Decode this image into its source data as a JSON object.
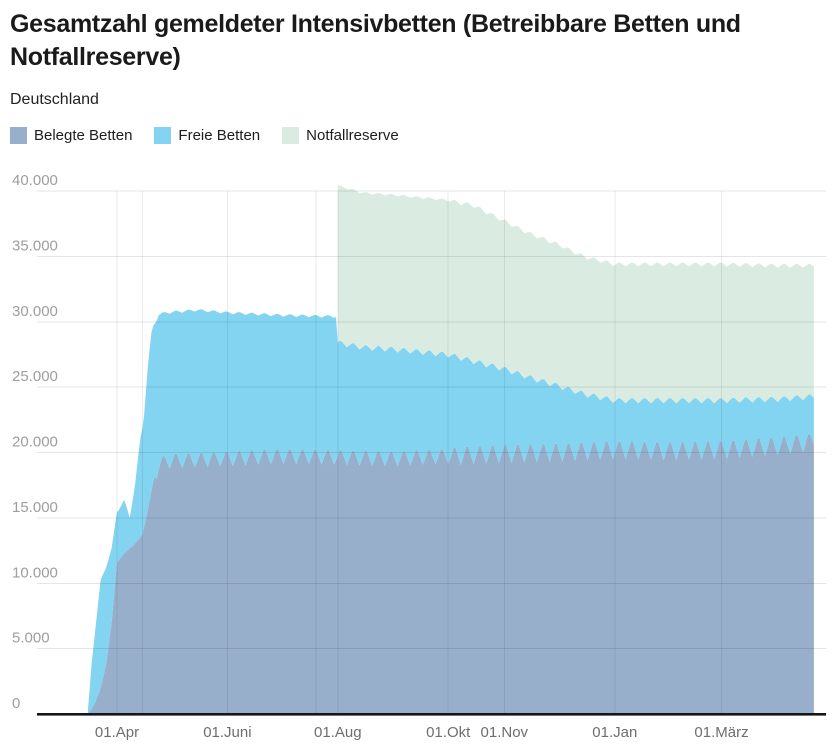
{
  "header": {
    "title": "Gesamtzahl gemeldeter Intensivbetten (Betreibbare Betten und Notfallreserve)",
    "subtitle": "Deutschland"
  },
  "colors": {
    "belegte": "#97afcb",
    "freie": "#82d4f1",
    "notfallreserve": "#daece2",
    "axis_line": "#16161a",
    "gridline": "rgba(0,0,0,0.10)",
    "minor_gridline": "rgba(0,0,0,0.08)",
    "y_tick_text": "#9e9e9e",
    "x_tick_text": "#6e6e6e"
  },
  "chart_data": {
    "type": "area",
    "stacked": true,
    "title": "Gesamtzahl gemeldeter Intensivbetten (Betreibbare Betten und Notfallreserve)",
    "subtitle": "Deutschland",
    "legend_position": "top-left",
    "grid": true,
    "ylim": [
      0,
      40000
    ],
    "y_axis": {
      "ticks": [
        {
          "label": "0",
          "value": 0
        },
        {
          "label": "5.000",
          "value": 5000
        },
        {
          "label": "10.000",
          "value": 10000
        },
        {
          "label": "15.000",
          "value": 15000
        },
        {
          "label": "20.000",
          "value": 20000
        },
        {
          "label": "25.000",
          "value": 25000
        },
        {
          "label": "30.000",
          "value": 30000
        },
        {
          "label": "35.000",
          "value": 35000
        },
        {
          "label": "40.000",
          "value": 40000
        }
      ]
    },
    "x_axis": {
      "range": [
        "2020-03-16",
        "2021-04-21"
      ],
      "tick_labels": [
        {
          "label": "01.Apr",
          "date": "2020-04-01"
        },
        {
          "label": "01.Juni",
          "date": "2020-06-01"
        },
        {
          "label": "01.Aug",
          "date": "2020-08-01"
        },
        {
          "label": "01.Okt",
          "date": "2020-10-01"
        },
        {
          "label": "01.Nov",
          "date": "2020-11-01"
        },
        {
          "label": "01.Jan",
          "date": "2021-01-01"
        },
        {
          "label": "01.März",
          "date": "2021-03-01"
        }
      ],
      "minor_gridline_dates": [
        "2020-04-15",
        "2020-07-20"
      ]
    },
    "series": [
      {
        "name": "Belegte Betten",
        "color": "#97afcb",
        "keypoints": [
          [
            "2020-03-16",
            0
          ],
          [
            "2020-03-18",
            400
          ],
          [
            "2020-03-20",
            900
          ],
          [
            "2020-03-23",
            2000
          ],
          [
            "2020-03-26",
            3800
          ],
          [
            "2020-03-29",
            7000
          ],
          [
            "2020-04-01",
            11600
          ],
          [
            "2020-04-05",
            12300
          ],
          [
            "2020-04-10",
            12900
          ],
          [
            "2020-04-15",
            13700
          ],
          [
            "2020-04-18",
            15600
          ],
          [
            "2020-04-21",
            17800
          ],
          [
            "2020-04-24",
            19000
          ],
          [
            "2020-04-28",
            19400
          ],
          [
            "2020-06-01",
            19600
          ],
          [
            "2020-07-01",
            19800
          ],
          [
            "2020-08-01",
            19700
          ],
          [
            "2020-09-01",
            19600
          ],
          [
            "2020-10-01",
            19800
          ],
          [
            "2020-11-01",
            20000
          ],
          [
            "2020-12-01",
            20100
          ],
          [
            "2021-01-01",
            20300
          ],
          [
            "2021-02-01",
            20200
          ],
          [
            "2021-03-01",
            20300
          ],
          [
            "2021-04-01",
            20600
          ],
          [
            "2021-04-21",
            20900
          ]
        ]
      },
      {
        "name": "Freie Betten",
        "color": "#82d4f1",
        "keypoints": [
          [
            "2020-03-16",
            300
          ],
          [
            "2020-03-18",
            3600
          ],
          [
            "2020-03-20",
            5600
          ],
          [
            "2020-03-23",
            8200
          ],
          [
            "2020-03-26",
            7500
          ],
          [
            "2020-03-29",
            5600
          ],
          [
            "2020-04-01",
            3900
          ],
          [
            "2020-04-05",
            4000
          ],
          [
            "2020-04-08",
            2400
          ],
          [
            "2020-04-11",
            4500
          ],
          [
            "2020-04-14",
            7600
          ],
          [
            "2020-04-16",
            8700
          ],
          [
            "2020-04-18",
            10900
          ],
          [
            "2020-04-20",
            12000
          ],
          [
            "2020-04-23",
            11600
          ],
          [
            "2020-04-28",
            11300
          ],
          [
            "2020-05-15",
            11400
          ],
          [
            "2020-06-01",
            11100
          ],
          [
            "2020-07-01",
            10700
          ],
          [
            "2020-07-31",
            10700
          ],
          [
            "2020-08-01",
            8700
          ],
          [
            "2020-08-15",
            8400
          ],
          [
            "2020-09-01",
            8300
          ],
          [
            "2020-10-01",
            7700
          ],
          [
            "2020-10-15",
            7100
          ],
          [
            "2020-11-01",
            6400
          ],
          [
            "2020-11-15",
            5700
          ],
          [
            "2020-12-01",
            5000
          ],
          [
            "2020-12-15",
            4300
          ],
          [
            "2021-01-01",
            3700
          ],
          [
            "2021-02-01",
            3800
          ],
          [
            "2021-03-01",
            3700
          ],
          [
            "2021-04-01",
            3500
          ],
          [
            "2021-04-21",
            3400
          ]
        ]
      },
      {
        "name": "Notfallreserve",
        "color": "#daece2",
        "start": "2020-08-01",
        "keypoints": [
          [
            "2020-08-01",
            12000
          ],
          [
            "2020-08-15",
            11800
          ],
          [
            "2020-09-01",
            11800
          ],
          [
            "2020-10-01",
            11800
          ],
          [
            "2020-10-15",
            11900
          ],
          [
            "2020-11-01",
            11300
          ],
          [
            "2020-11-15",
            11000
          ],
          [
            "2020-12-01",
            10800
          ],
          [
            "2020-12-15",
            10500
          ],
          [
            "2021-01-01",
            10400
          ],
          [
            "2021-02-01",
            10400
          ],
          [
            "2021-03-01",
            10400
          ],
          [
            "2021-04-01",
            10200
          ],
          [
            "2021-04-21",
            10000
          ]
        ]
      }
    ],
    "weekly_oscillation": {
      "period_days": 7,
      "edges": [
        {
          "edge": "belegte_top",
          "segments": [
            [
              "2020-03-16",
              "2020-04-22",
              0
            ],
            [
              "2020-04-22",
              "2020-10-01",
              650
            ],
            [
              "2020-10-01",
              "2021-04-21",
              800
            ]
          ]
        },
        {
          "edge": "betreibbar_top",
          "segments": [
            [
              "2020-03-16",
              "2020-08-01",
              110
            ],
            [
              "2020-08-01",
              "2021-04-21",
              230
            ]
          ]
        },
        {
          "edge": "gesamt_top",
          "segments": [
            [
              "2020-08-01",
              "2020-10-01",
              90
            ],
            [
              "2020-10-01",
              "2021-04-21",
              170
            ]
          ]
        }
      ]
    }
  }
}
